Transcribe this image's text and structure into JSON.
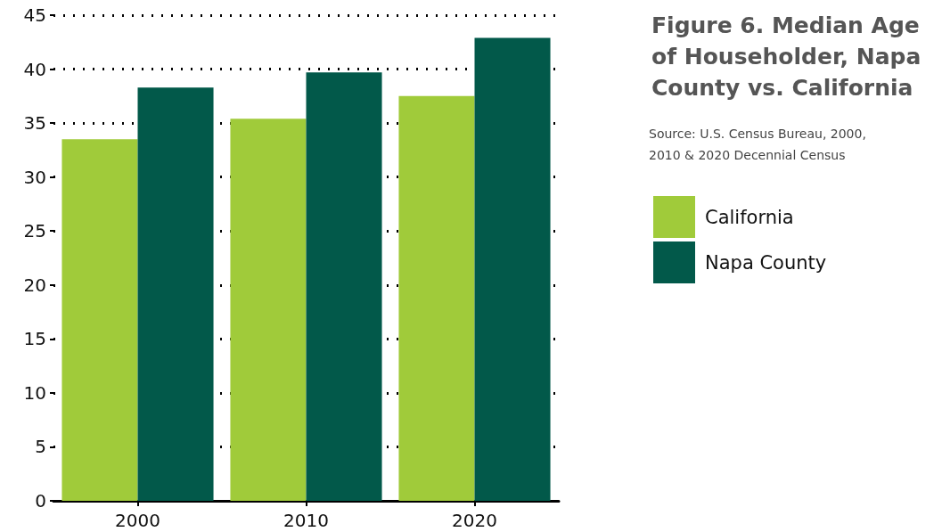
{
  "chart_data": {
    "type": "bar",
    "title": "Figure 6. Median Age of Householder, Napa County vs. California",
    "annotations": [
      "Source: U.S. Census Bureau, 2000, 2010 & 2020 Decennial Census"
    ],
    "categories": [
      "2000",
      "2010",
      "2020"
    ],
    "series": [
      {
        "name": "California",
        "color": "#a0cb3a",
        "values": [
          33.5,
          35.4,
          37.5
        ]
      },
      {
        "name": "Napa County",
        "color": "#02594a",
        "values": [
          38.3,
          39.7,
          42.9
        ]
      }
    ],
    "ylim": [
      0,
      45
    ],
    "yticks": [
      0,
      5,
      10,
      15,
      20,
      25,
      30,
      35,
      40,
      45
    ],
    "grid": "y",
    "legend": "right"
  }
}
